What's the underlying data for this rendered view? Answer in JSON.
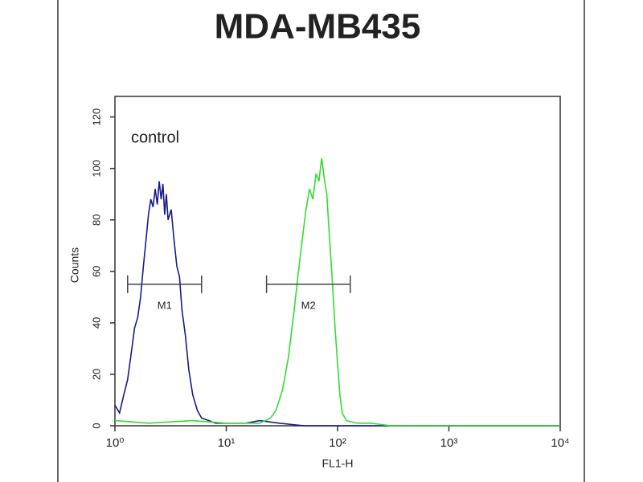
{
  "chart_data": {
    "type": "histogram-line",
    "title": "MDA-MB435",
    "annotation": "control",
    "x_label": "FL1-H",
    "y_label": "Counts",
    "log_x": true,
    "xlim": [
      1,
      10000
    ],
    "xticks": [
      {
        "value": 1,
        "label": "10⁰"
      },
      {
        "value": 10,
        "label": "10¹"
      },
      {
        "value": 100,
        "label": "10²"
      },
      {
        "value": 1000,
        "label": "10³"
      },
      {
        "value": 10000,
        "label": "10⁴"
      }
    ],
    "ylim": [
      0,
      128
    ],
    "yticks": [
      0,
      20,
      40,
      60,
      80,
      100,
      120
    ],
    "series": [
      {
        "color": "#1a1a8c",
        "x": [
          1,
          1.1,
          1.2,
          1.3,
          1.4,
          1.5,
          1.6,
          1.7,
          1.8,
          1.9,
          2.0,
          2.1,
          2.2,
          2.3,
          2.4,
          2.5,
          2.6,
          2.7,
          2.8,
          2.9,
          3.0,
          3.2,
          3.4,
          3.6,
          3.8,
          4.0,
          4.3,
          4.6,
          5.0,
          5.5,
          6.0,
          7,
          8,
          10,
          15,
          20,
          30,
          50,
          100,
          1000,
          10000
        ],
        "values": [
          8,
          5,
          12,
          18,
          28,
          38,
          42,
          50,
          62,
          72,
          82,
          88,
          85,
          92,
          86,
          95,
          88,
          94,
          82,
          90,
          80,
          84,
          72,
          62,
          58,
          45,
          35,
          22,
          12,
          6,
          3,
          2,
          1,
          1,
          1,
          2,
          1,
          0,
          0,
          0,
          0
        ]
      },
      {
        "color": "#33dd33",
        "x": [
          1,
          2,
          5,
          10,
          15,
          20,
          25,
          28,
          32,
          36,
          40,
          44,
          48,
          52,
          56,
          60,
          64,
          68,
          72,
          76,
          80,
          85,
          90,
          95,
          100,
          105,
          110,
          120,
          150,
          200,
          300,
          1000,
          10000
        ],
        "values": [
          2,
          1,
          2,
          1,
          1,
          1,
          3,
          6,
          14,
          26,
          42,
          58,
          72,
          84,
          92,
          88,
          98,
          95,
          104,
          96,
          90,
          72,
          55,
          38,
          24,
          12,
          5,
          2,
          1,
          1,
          0,
          0,
          0
        ]
      }
    ],
    "markers": [
      {
        "label": "M1",
        "range": [
          1.3,
          6
        ],
        "y": 55
      },
      {
        "label": "M2",
        "range": [
          23,
          130
        ],
        "y": 55
      }
    ]
  }
}
